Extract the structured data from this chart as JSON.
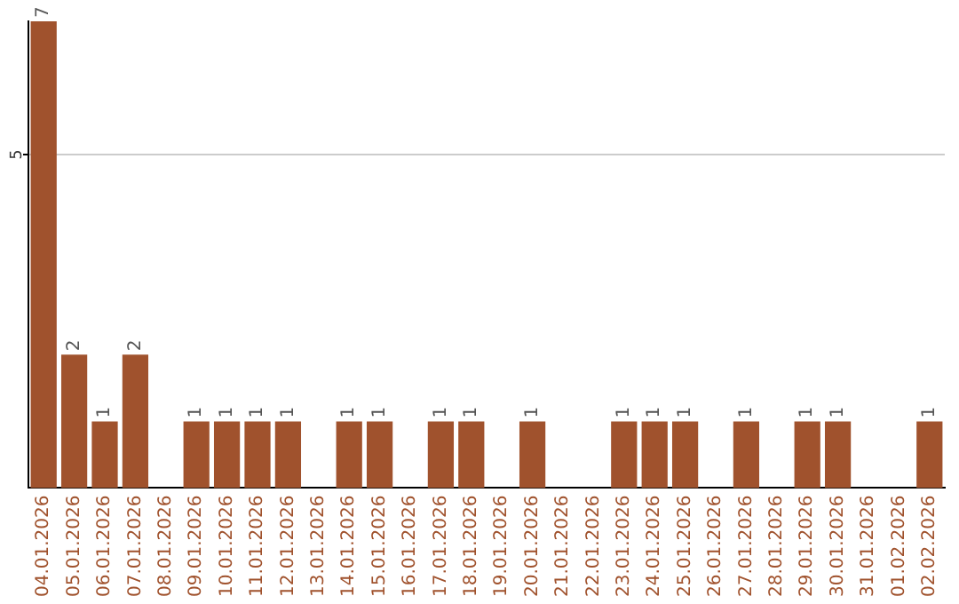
{
  "chart_data": {
    "type": "bar",
    "categories": [
      "04.01.2026",
      "05.01.2026",
      "06.01.2026",
      "07.01.2026",
      "08.01.2026",
      "09.01.2026",
      "10.01.2026",
      "11.01.2026",
      "12.01.2026",
      "13.01.2026",
      "14.01.2026",
      "15.01.2026",
      "16.01.2026",
      "17.01.2026",
      "18.01.2026",
      "19.01.2026",
      "20.01.2026",
      "21.01.2026",
      "22.01.2026",
      "23.01.2026",
      "24.01.2026",
      "25.01.2026",
      "26.01.2026",
      "27.01.2026",
      "28.01.2026",
      "29.01.2026",
      "30.01.2026",
      "31.01.2026",
      "01.02.2026",
      "02.02.2026"
    ],
    "values": [
      7,
      2,
      1,
      2,
      0,
      1,
      1,
      1,
      1,
      0,
      1,
      1,
      0,
      1,
      1,
      0,
      1,
      0,
      0,
      1,
      1,
      1,
      0,
      1,
      0,
      1,
      1,
      0,
      0,
      1
    ],
    "value_labels": [
      "7",
      "2",
      "1",
      "2",
      null,
      "1",
      "1",
      "1",
      "1",
      null,
      "1",
      "1",
      null,
      "1",
      "1",
      null,
      "1",
      null,
      null,
      "1",
      "1",
      "1",
      null,
      "1",
      null,
      "1",
      "1",
      null,
      null,
      "1"
    ],
    "color": "#a0522d",
    "ylim": [
      0,
      7
    ],
    "yticks": [
      5
    ],
    "grid": "y",
    "legend": false
  }
}
